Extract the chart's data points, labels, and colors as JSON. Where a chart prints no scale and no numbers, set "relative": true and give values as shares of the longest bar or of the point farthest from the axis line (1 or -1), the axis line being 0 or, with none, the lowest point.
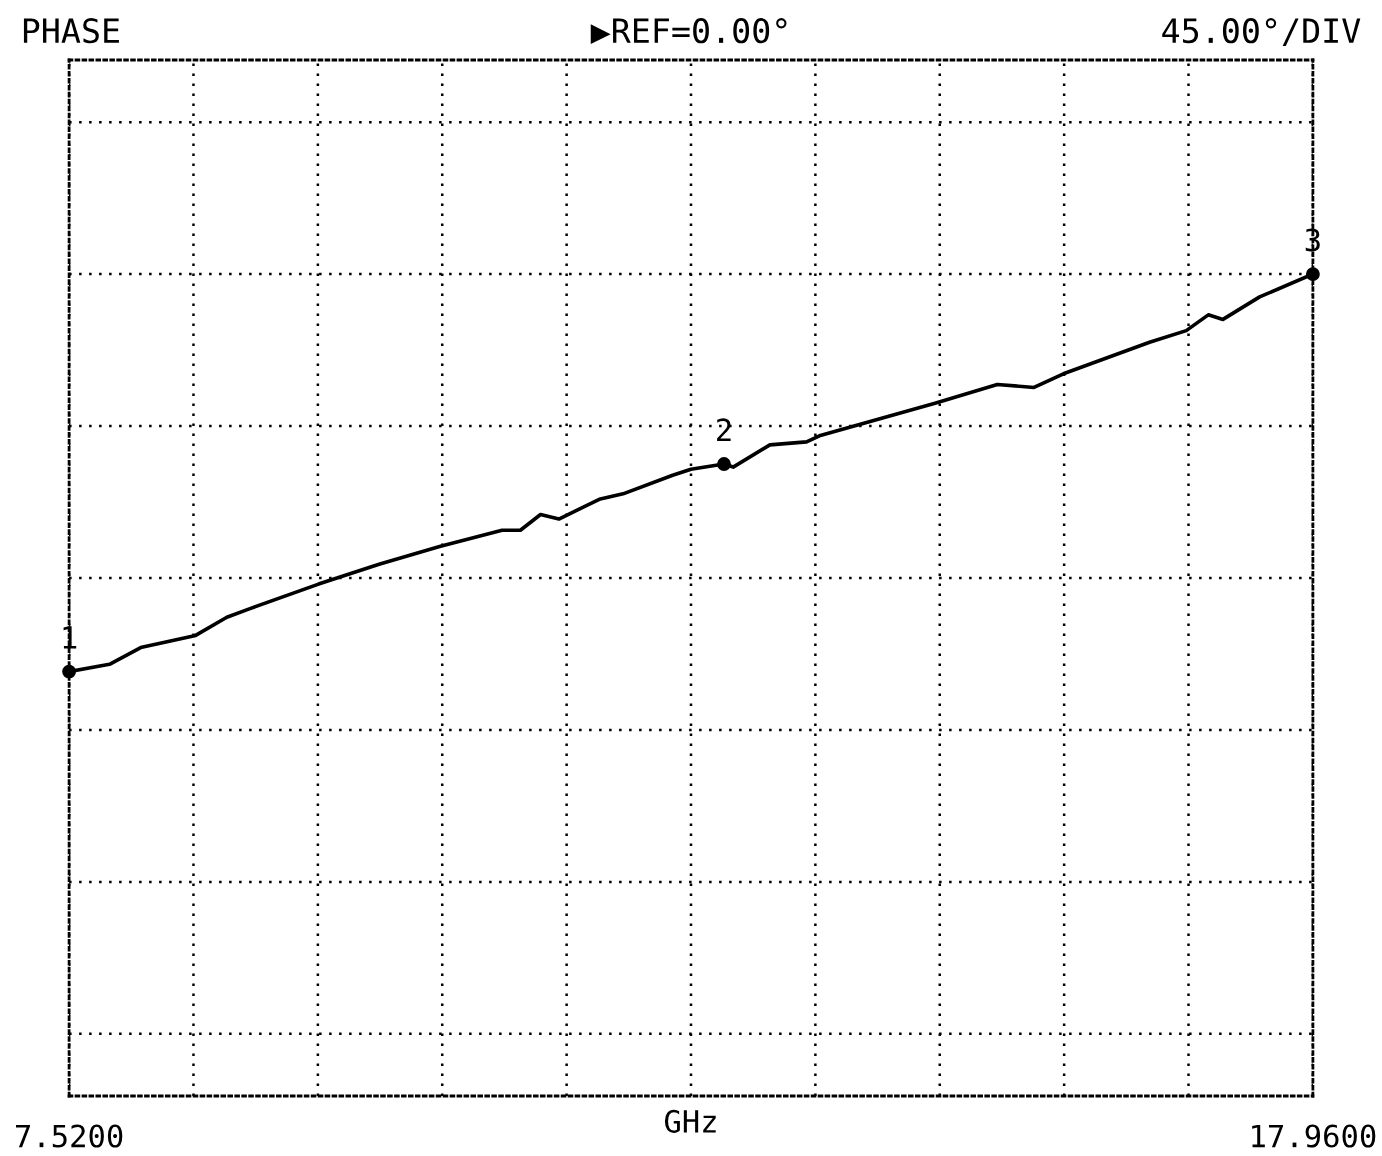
{
  "chart_data": {
    "type": "line",
    "title": "PHASE",
    "subtitle": "▶REF=0.00°",
    "xlabel": "GHz",
    "annotations": [
      "45.00°/DIV",
      {
        "text": "1",
        "x": 7.52,
        "y": -0.308
      },
      {
        "text": "2",
        "x": 13.017,
        "y": 0.375
      },
      {
        "text": "3",
        "x": 17.96,
        "y": 1
      }
    ],
    "relative": true,
    "x": [
      7.52,
      7.859,
      8.121,
      8.582,
      8.844,
      9.044,
      9.614,
      10.122,
      10.63,
      11.154,
      11.308,
      11.477,
      11.631,
      11.97,
      12.17,
      12.586,
      12.74,
      13.017,
      13.094,
      13.402,
      13.71,
      13.818,
      14.788,
      15.311,
      15.619,
      15.866,
      16.589,
      16.897,
      17.082,
      17.205,
      17.513,
      17.96
    ],
    "series": [
      {
        "color": "#000000",
        "values": [
          -0.308,
          -0.284,
          -0.229,
          -0.189,
          -0.129,
          -0.1,
          -0.02,
          0.045,
          0.104,
          0.157,
          0.157,
          0.209,
          0.194,
          0.259,
          0.277,
          0.338,
          0.358,
          0.375,
          0.365,
          0.438,
          0.448,
          0.468,
          0.575,
          0.637,
          0.627,
          0.672,
          0.776,
          0.814,
          0.866,
          0.851,
          0.925,
          1
        ]
      }
    ],
    "xlim": [
      7.52,
      17.96
    ],
    "xticks": [
      {
        "value": 7.52,
        "label": "7.5200"
      },
      {
        "value": 8.564,
        "label": null
      },
      {
        "value": 9.608,
        "label": null
      },
      {
        "value": 10.652,
        "label": null
      },
      {
        "value": 11.696,
        "label": null
      },
      {
        "value": 12.74,
        "label": null
      },
      {
        "value": 13.784,
        "label": null
      },
      {
        "value": 14.828,
        "label": null
      },
      {
        "value": 15.872,
        "label": null
      },
      {
        "value": 16.916,
        "label": null
      },
      {
        "value": 17.96,
        "label": "17.9600"
      }
    ],
    "tick_labels": "x",
    "grid": true,
    "marker": "none",
    "line_style": "solid"
  }
}
